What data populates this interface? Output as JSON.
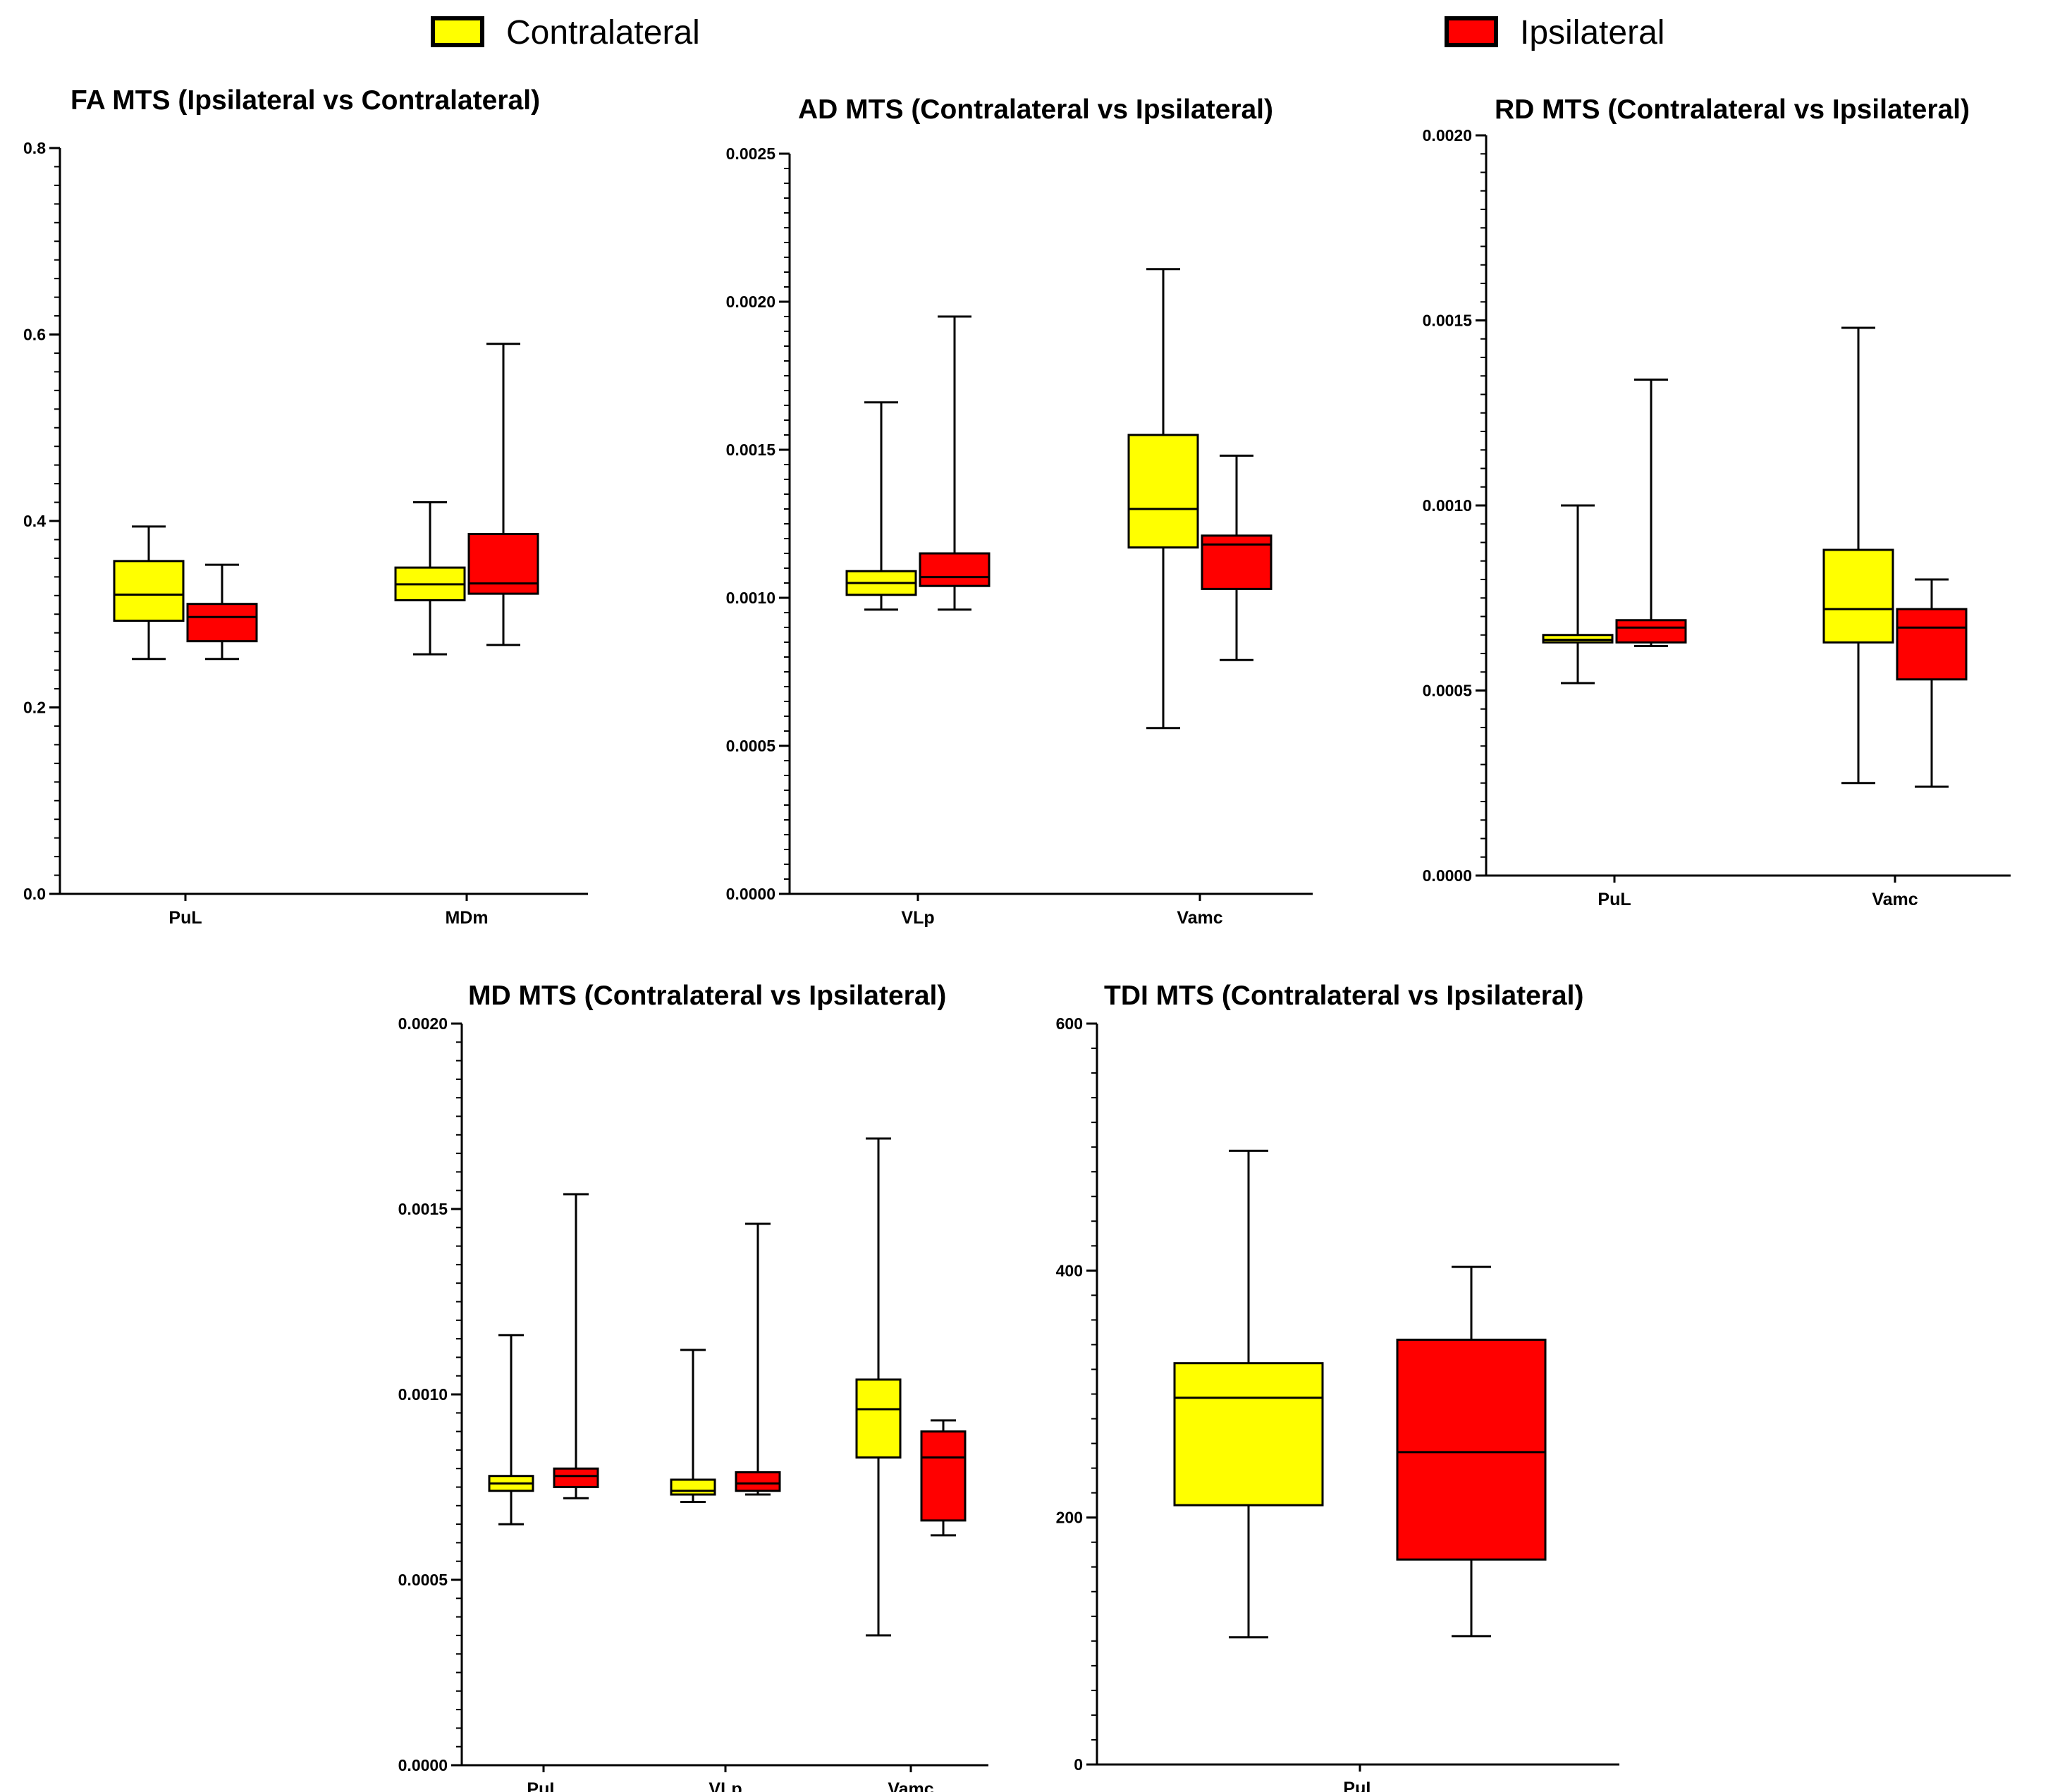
{
  "legend": {
    "items": [
      {
        "label": "Contralateral",
        "color": "#FFFF00"
      },
      {
        "label": "Ipsilateral",
        "color": "#FF0000"
      }
    ]
  },
  "chart_data": [
    {
      "type": "box",
      "title": "FA MTS (Ipsilateral vs Contralateral)",
      "ylim": [
        0,
        0.8
      ],
      "yticks": [
        "0.0",
        "0.2",
        "0.4",
        "0.6",
        "0.8"
      ],
      "categories": [
        "PuL",
        "MDm"
      ],
      "series": [
        {
          "name": "Contralateral",
          "boxes": [
            {
              "min": 0.252,
              "q1": 0.293,
              "median": 0.321,
              "q3": 0.357,
              "max": 0.394
            },
            {
              "min": 0.257,
              "q1": 0.315,
              "median": 0.332,
              "q3": 0.35,
              "max": 0.42
            }
          ]
        },
        {
          "name": "Ipsilateral",
          "boxes": [
            {
              "min": 0.252,
              "q1": 0.271,
              "median": 0.297,
              "q3": 0.311,
              "max": 0.353
            },
            {
              "min": 0.267,
              "q1": 0.322,
              "median": 0.333,
              "q3": 0.386,
              "max": 0.59
            }
          ]
        }
      ]
    },
    {
      "type": "box",
      "title": "AD MTS (Contralateral vs Ipsilateral)",
      "ylim": [
        0,
        0.0025
      ],
      "yticks": [
        "0.0000",
        "0.0005",
        "0.0010",
        "0.0015",
        "0.0020",
        "0.0025"
      ],
      "categories": [
        "VLp",
        "Vamc"
      ],
      "series": [
        {
          "name": "Contralateral",
          "boxes": [
            {
              "min": 0.00096,
              "q1": 0.00101,
              "median": 0.00105,
              "q3": 0.00109,
              "max": 0.00166
            },
            {
              "min": 0.00056,
              "q1": 0.00117,
              "median": 0.0013,
              "q3": 0.00155,
              "max": 0.00211
            }
          ]
        },
        {
          "name": "Ipsilateral",
          "boxes": [
            {
              "min": 0.00096,
              "q1": 0.00104,
              "median": 0.00107,
              "q3": 0.00115,
              "max": 0.00195
            },
            {
              "min": 0.00079,
              "q1": 0.00103,
              "median": 0.00118,
              "q3": 0.00121,
              "max": 0.00148
            }
          ]
        }
      ]
    },
    {
      "type": "box",
      "title": "RD MTS (Contralateral vs Ipsilateral)",
      "ylim": [
        0,
        0.002
      ],
      "yticks": [
        "0.0000",
        "0.0005",
        "0.0010",
        "0.0015",
        "0.0020"
      ],
      "categories": [
        "PuL",
        "Vamc"
      ],
      "series": [
        {
          "name": "Contralateral",
          "boxes": [
            {
              "min": 0.00052,
              "q1": 0.00063,
              "median": 0.000637,
              "q3": 0.00065,
              "max": 0.001
            },
            {
              "min": 0.00025,
              "q1": 0.00063,
              "median": 0.00072,
              "q3": 0.00088,
              "max": 0.00148
            }
          ]
        },
        {
          "name": "Ipsilateral",
          "boxes": [
            {
              "min": 0.00062,
              "q1": 0.00063,
              "median": 0.00067,
              "q3": 0.00069,
              "max": 0.00134
            },
            {
              "min": 0.00024,
              "q1": 0.00053,
              "median": 0.00067,
              "q3": 0.00072,
              "max": 0.0008
            }
          ]
        }
      ]
    },
    {
      "type": "box",
      "title": "MD MTS (Contralateral vs Ipsilateral)",
      "ylim": [
        0,
        0.002
      ],
      "yticks": [
        "0.0000",
        "0.0005",
        "0.0010",
        "0.0015",
        "0.0020"
      ],
      "categories": [
        "PuL",
        "VLp",
        "Vamc"
      ],
      "series": [
        {
          "name": "Contralateral",
          "boxes": [
            {
              "min": 0.00065,
              "q1": 0.00074,
              "median": 0.00076,
              "q3": 0.00078,
              "max": 0.00116
            },
            {
              "min": 0.00071,
              "q1": 0.00073,
              "median": 0.00074,
              "q3": 0.00077,
              "max": 0.00112
            },
            {
              "min": 0.00035,
              "q1": 0.00083,
              "median": 0.00096,
              "q3": 0.00104,
              "max": 0.00169
            }
          ]
        },
        {
          "name": "Ipsilateral",
          "boxes": [
            {
              "min": 0.00072,
              "q1": 0.00075,
              "median": 0.00078,
              "q3": 0.0008,
              "max": 0.00154
            },
            {
              "min": 0.00073,
              "q1": 0.00074,
              "median": 0.00076,
              "q3": 0.00079,
              "max": 0.00146
            },
            {
              "min": 0.00062,
              "q1": 0.00066,
              "median": 0.00083,
              "q3": 0.0009,
              "max": 0.00093
            }
          ]
        }
      ]
    },
    {
      "type": "box",
      "title": "TDI MTS (Contralateral vs Ipsilateral)",
      "ylim": [
        0,
        600
      ],
      "yticks": [
        "0",
        "200",
        "400",
        "600"
      ],
      "categories": [
        "PuL"
      ],
      "series": [
        {
          "name": "Contralateral",
          "boxes": [
            {
              "min": 103,
              "q1": 210,
              "median": 297,
              "q3": 325,
              "max": 497
            }
          ]
        },
        {
          "name": "Ipsilateral",
          "boxes": [
            {
              "min": 104,
              "q1": 166,
              "median": 253,
              "q3": 344,
              "max": 403
            }
          ]
        }
      ]
    }
  ]
}
